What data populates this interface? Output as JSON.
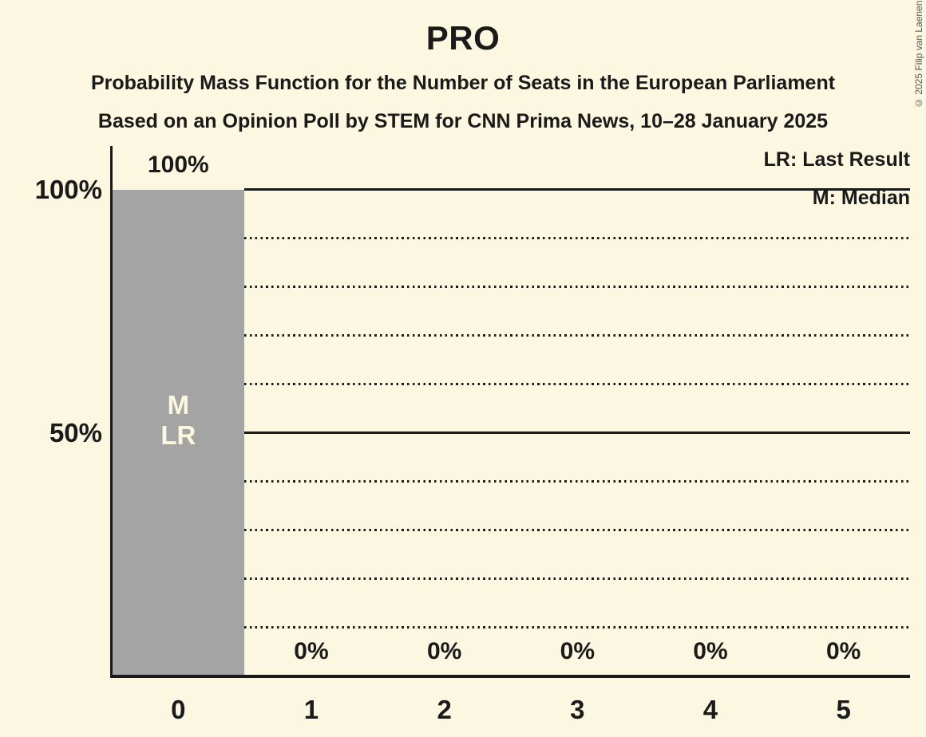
{
  "header": {
    "title": "PRO",
    "subtitle1": "Probability Mass Function for the Number of Seats in the European Parliament",
    "subtitle2": "Based on an Opinion Poll by STEM for CNN Prima News, 10–28 January 2025"
  },
  "legend": {
    "lr": "LR: Last Result",
    "m": "M: Median"
  },
  "copyright": "© 2025 Filip van Laenen",
  "chart_data": {
    "type": "bar",
    "title": "PRO",
    "categories": [
      "0",
      "1",
      "2",
      "3",
      "4",
      "5"
    ],
    "values": [
      100,
      0,
      0,
      0,
      0,
      0
    ],
    "bar_labels": [
      "100%",
      "0%",
      "0%",
      "0%",
      "0%",
      "0%"
    ],
    "bar_annotations": [
      {
        "category_index": 0,
        "lines": [
          "M",
          "LR"
        ]
      }
    ],
    "xlabel": "",
    "ylabel": "",
    "ylim": [
      0,
      100
    ],
    "yticks": [
      {
        "value": 100,
        "label": "100%"
      },
      {
        "value": 50,
        "label": "50%"
      }
    ],
    "gridlines": {
      "solid": [
        100,
        50
      ],
      "dotted": [
        90,
        80,
        70,
        60,
        40,
        30,
        20,
        10
      ]
    },
    "legend_position": "top-right",
    "grid": true,
    "colors": {
      "background": "#FCF7E1",
      "bar": "#A4A4A4",
      "text": "#1A1A1A",
      "bar_text": "#FCF7E1"
    }
  }
}
